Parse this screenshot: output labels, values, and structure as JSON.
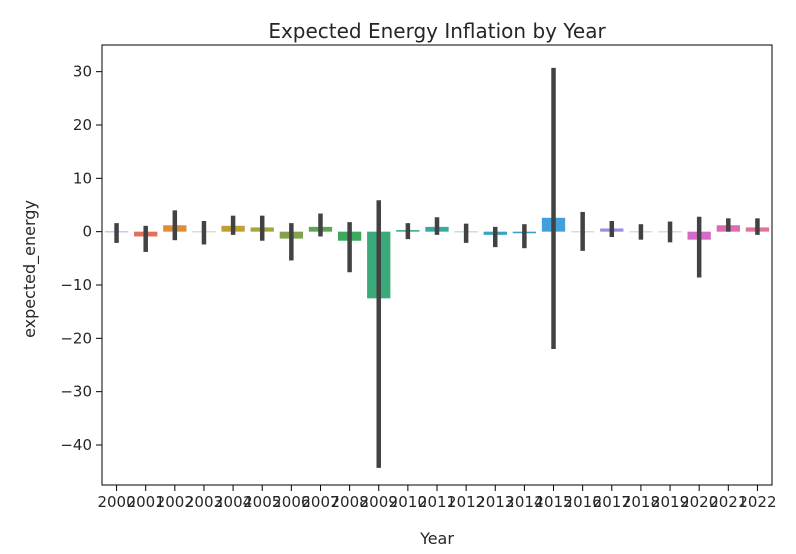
{
  "chart_data": {
    "type": "bar",
    "title": "Expected Energy Inflation by Year",
    "xlabel": "Year",
    "ylabel": "expected_energy",
    "ylim": [
      -47.5,
      35.0
    ],
    "yticks": [
      30,
      20,
      10,
      0,
      -10,
      -20,
      -30,
      -40
    ],
    "categories": [
      "2000",
      "2001",
      "2002",
      "2003",
      "2004",
      "2005",
      "2006",
      "2007",
      "2008",
      "2009",
      "2010",
      "2011",
      "2012",
      "2013",
      "2014",
      "2015",
      "2016",
      "2017",
      "2018",
      "2019",
      "2020",
      "2021",
      "2022"
    ],
    "values": [
      0.0,
      -0.9,
      1.2,
      0.0,
      1.1,
      0.8,
      -1.3,
      0.9,
      -1.7,
      -12.5,
      0.3,
      0.9,
      0.0,
      -0.6,
      -0.3,
      2.6,
      0.0,
      0.6,
      0.0,
      0.0,
      -1.5,
      1.2,
      0.8
    ],
    "error_low": [
      -2.1,
      -3.8,
      -1.6,
      -2.4,
      -0.6,
      -1.7,
      -5.4,
      -0.9,
      -7.6,
      -44.3,
      -1.4,
      -0.6,
      -2.1,
      -2.9,
      -3.1,
      -22.0,
      -3.6,
      -1.0,
      -1.5,
      -2.0,
      -8.6,
      0.0,
      -0.6
    ],
    "error_high": [
      1.6,
      1.1,
      4.0,
      2.0,
      3.0,
      3.0,
      1.6,
      3.4,
      1.8,
      5.9,
      1.6,
      2.7,
      1.5,
      0.9,
      1.4,
      30.7,
      3.7,
      2.0,
      1.4,
      1.9,
      2.8,
      2.5,
      2.5
    ],
    "colors": [
      "#3b6fc4",
      "#e0715a",
      "#e08c3a",
      "#b78a3f",
      "#c09f35",
      "#a3a83c",
      "#84a34e",
      "#5aa850",
      "#3aaa5e",
      "#3aaa7a",
      "#39aa92",
      "#38a8a3",
      "#37a7b2",
      "#39a4bf",
      "#3a9fce",
      "#41a0dc",
      "#7f95e0",
      "#9e8be3",
      "#b47ee1",
      "#c56fd7",
      "#d56bc8",
      "#dd6bb2",
      "#e2729c"
    ],
    "grid": false
  }
}
